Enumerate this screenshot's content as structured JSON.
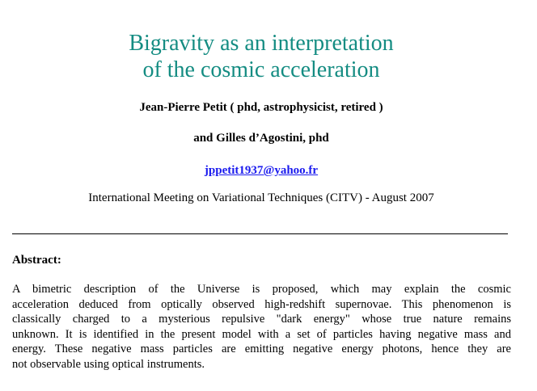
{
  "title": {
    "lines": [
      "Bigravity as an interpretation",
      "of the cosmic acceleration"
    ]
  },
  "authors": {
    "line1": "Jean-Pierre Petit ( phd, astrophysicist, retired )",
    "line2": "and Gilles d’Agostini, phd",
    "email": "jppetit1937@yahoo.fr"
  },
  "venue": "International Meeting on Variational Techniques (CITV) - August 2007",
  "abstract": {
    "heading": "Abstract:",
    "lines": [
      "A bimetric description of the Universe is proposed, which may explain the cosmic",
      "acceleration deduced from optically observed high-redshift  supernovae. This phenomenon is",
      "classically charged to a mysterious repulsive \"dark energy\" whose true nature remains",
      "unknown. It is identified in the present model with a set of particles having negative mass and",
      "energy. These negative mass particles are emitting negative energy photons, hence they are",
      "not observable using optical instruments."
    ]
  }
}
